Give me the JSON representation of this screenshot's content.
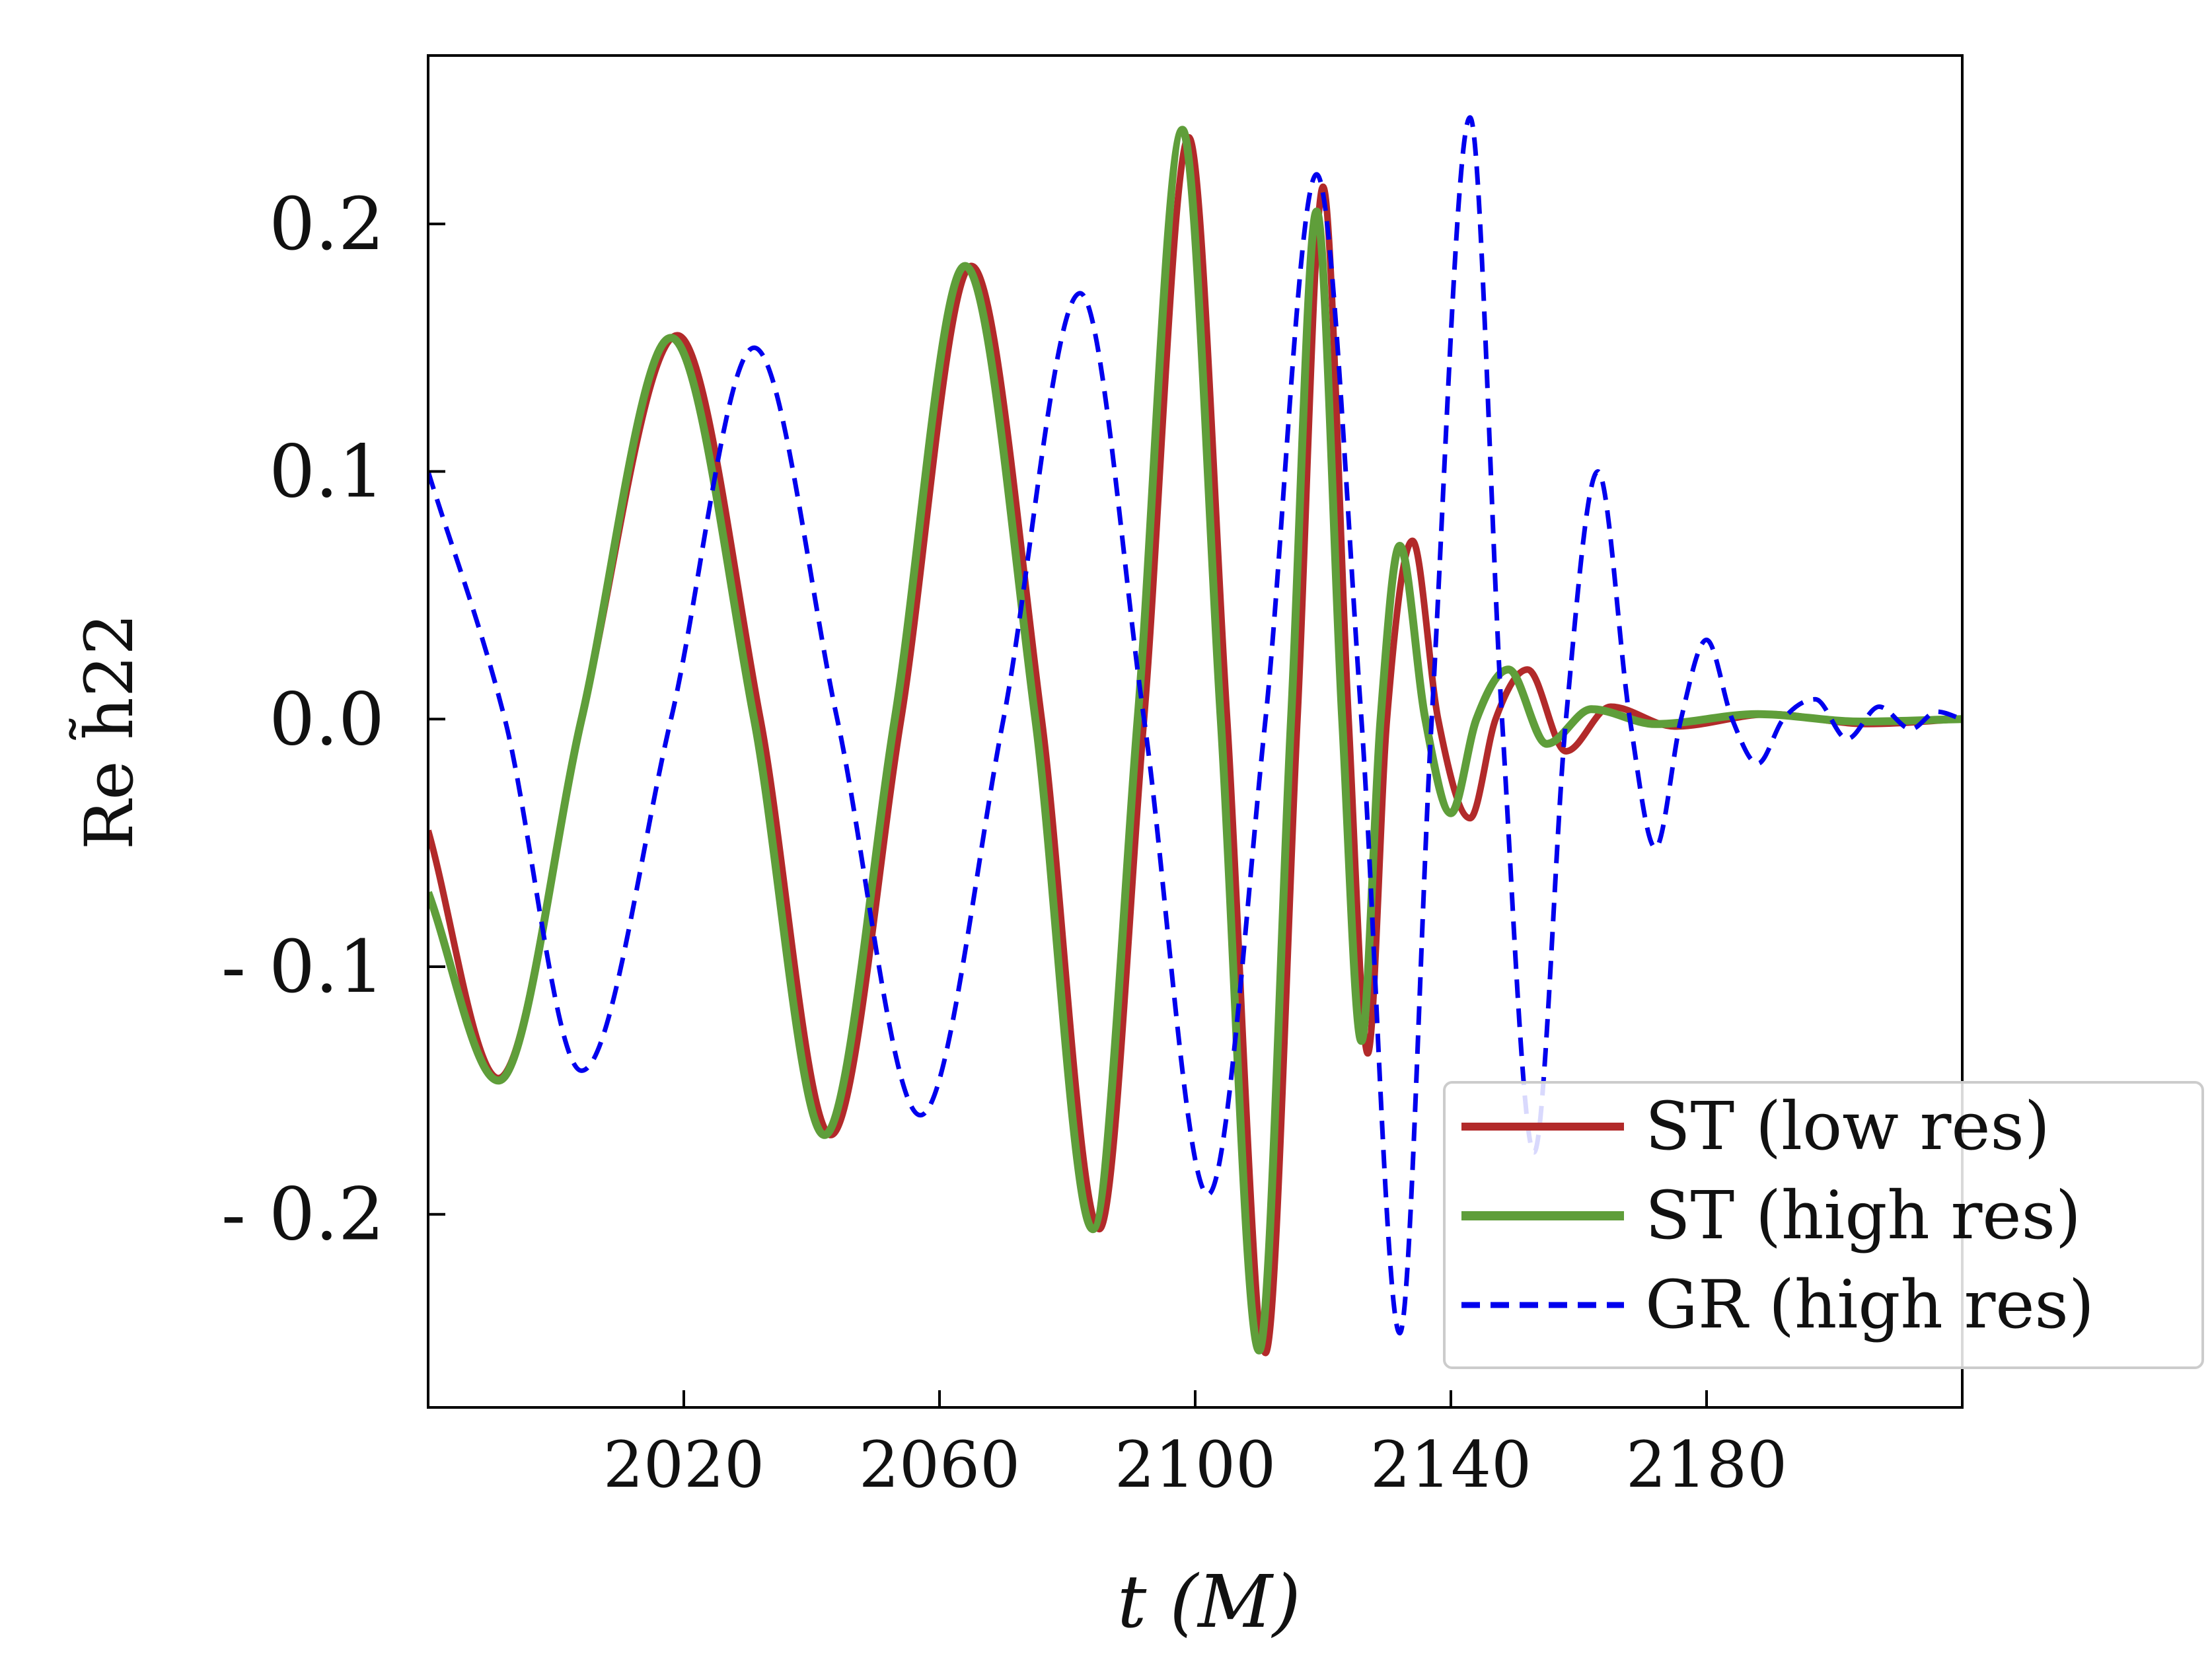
{
  "chart_data": {
    "type": "line",
    "xlabel": "t (M)",
    "ylabel": "Re h̃22",
    "xlim": [
      1980,
      2220
    ],
    "ylim": [
      -0.278,
      0.268
    ],
    "xticks": [
      2020,
      2060,
      2100,
      2140,
      2180
    ],
    "xtick_labels": [
      "2020",
      "2060",
      "2100",
      "2140",
      "2180"
    ],
    "yticks": [
      0.2,
      0.1,
      0.0,
      -0.1,
      -0.2
    ],
    "ytick_labels": [
      "0.2",
      "0.1",
      "0.0",
      "- 0.1",
      "- 0.2"
    ],
    "grid": false,
    "legend_placement": "lower-right",
    "series": [
      {
        "name": "ST  (low res)",
        "color": "#b22a2a",
        "style": "solid",
        "x": [
          1980,
          1991,
          2004,
          2019,
          2032,
          2043,
          2054,
          2065,
          2076,
          2085,
          2092,
          2099,
          2105,
          2111,
          2116,
          2120,
          2124,
          2127,
          2130,
          2134,
          2138,
          2143,
          2147,
          2152,
          2158,
          2165,
          2175,
          2190,
          2205,
          2220
        ],
        "y": [
          -0.045,
          -0.145,
          0.0,
          0.155,
          0.0,
          -0.168,
          0.0,
          0.183,
          0.0,
          -0.206,
          0.0,
          0.235,
          0.0,
          -0.256,
          0.0,
          0.215,
          0.0,
          -0.135,
          0.0,
          0.072,
          0.0,
          -0.04,
          0.0,
          0.02,
          -0.013,
          0.005,
          -0.003,
          0.002,
          -0.002,
          0.0
        ]
      },
      {
        "name": "ST  (high res)",
        "color": "#5f9e3a",
        "style": "solid",
        "x": [
          1980,
          1991,
          2004,
          2018,
          2031,
          2042,
          2053,
          2064,
          2075,
          2084,
          2091,
          2098,
          2104,
          2110,
          2115,
          2119,
          2123,
          2126,
          2129,
          2132,
          2136,
          2140,
          2144,
          2149,
          2155,
          2162,
          2172,
          2188,
          2204,
          2220
        ],
        "y": [
          -0.07,
          -0.146,
          0.0,
          0.154,
          0.0,
          -0.168,
          0.0,
          0.183,
          0.0,
          -0.206,
          0.0,
          0.238,
          0.0,
          -0.255,
          0.0,
          0.205,
          0.0,
          -0.13,
          0.0,
          0.07,
          0.0,
          -0.038,
          0.0,
          0.02,
          -0.01,
          0.004,
          -0.002,
          0.002,
          -0.001,
          0.0
        ]
      },
      {
        "name": "GR (high res)",
        "color": "#0000ee",
        "style": "dashed",
        "x": [
          1980,
          1992,
          2004,
          2018,
          2031,
          2044,
          2057,
          2070,
          2082,
          2092,
          2102,
          2111,
          2119,
          2126,
          2132,
          2137,
          2143,
          2148,
          2153,
          2158,
          2163,
          2168,
          2172,
          2176,
          2180,
          2184,
          2188,
          2192,
          2197,
          2202,
          2207,
          2212,
          2216,
          2220
        ],
        "y": [
          0.1,
          0.0,
          -0.142,
          0.0,
          0.15,
          0.0,
          -0.16,
          0.0,
          0.172,
          0.0,
          -0.192,
          0.0,
          0.22,
          0.0,
          -0.248,
          0.0,
          0.243,
          0.0,
          -0.175,
          0.0,
          0.1,
          0.0,
          -0.052,
          0.0,
          0.032,
          0.0,
          -0.018,
          0.0,
          0.008,
          -0.008,
          0.005,
          -0.004,
          0.003,
          0.0
        ]
      }
    ]
  }
}
